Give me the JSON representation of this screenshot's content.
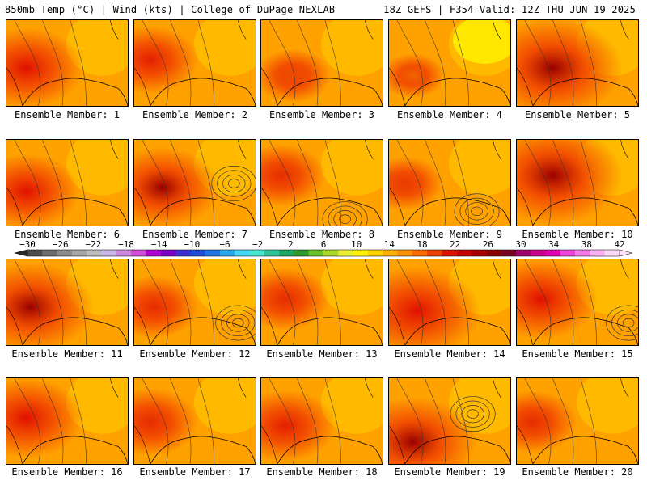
{
  "header": {
    "left": "850mb Temp (°C) | Wind (kts) | College of DuPage NEXLAB",
    "right": "18Z GEFS | F354 Valid: 12Z THU JUN 19 2025"
  },
  "colorbar": {
    "labels": [
      "−30",
      "−26",
      "−22",
      "−18",
      "−14",
      "−10",
      "−6",
      "−2",
      "2",
      "6",
      "10",
      "14",
      "18",
      "22",
      "26",
      "30",
      "34",
      "38",
      "42"
    ],
    "colors": [
      "#4c4c4c",
      "#6e6e6e",
      "#8a8a8a",
      "#a6a6a6",
      "#bdbdbd",
      "#c9b7e8",
      "#cc88dd",
      "#d14fd6",
      "#b100d4",
      "#7a00c8",
      "#3a2fd6",
      "#1f4cd8",
      "#1d76e6",
      "#25a8f0",
      "#40d8f5",
      "#46e6d0",
      "#2ec49a",
      "#1aa863",
      "#2e9a2e",
      "#6cc22a",
      "#a8d82a",
      "#e8f030",
      "#fff200",
      "#ffd200",
      "#ffb000",
      "#ff9000",
      "#ff6a00",
      "#f04000",
      "#e01000",
      "#c80000",
      "#a80000",
      "#8a0000",
      "#780020",
      "#a0006a",
      "#c8008c",
      "#e000b0",
      "#ee44d8",
      "#f47ae6",
      "#f8b0f0",
      "#fcd8f8"
    ]
  },
  "panels": [
    {
      "caption": "Ensemble Member: 1"
    },
    {
      "caption": "Ensemble Member: 2"
    },
    {
      "caption": "Ensemble Member: 3"
    },
    {
      "caption": "Ensemble Member: 4"
    },
    {
      "caption": "Ensemble Member: 5"
    },
    {
      "caption": "Ensemble Member: 6"
    },
    {
      "caption": "Ensemble Member: 7"
    },
    {
      "caption": "Ensemble Member: 8"
    },
    {
      "caption": "Ensemble Member: 9"
    },
    {
      "caption": "Ensemble Member: 10"
    },
    {
      "caption": "Ensemble Member: 11"
    },
    {
      "caption": "Ensemble Member: 12"
    },
    {
      "caption": "Ensemble Member: 13"
    },
    {
      "caption": "Ensemble Member: 14"
    },
    {
      "caption": "Ensemble Member: 15"
    },
    {
      "caption": "Ensemble Member: 16"
    },
    {
      "caption": "Ensemble Member: 17"
    },
    {
      "caption": "Ensemble Member: 18"
    },
    {
      "caption": "Ensemble Member: 19"
    },
    {
      "caption": "Ensemble Member: 20"
    }
  ]
}
